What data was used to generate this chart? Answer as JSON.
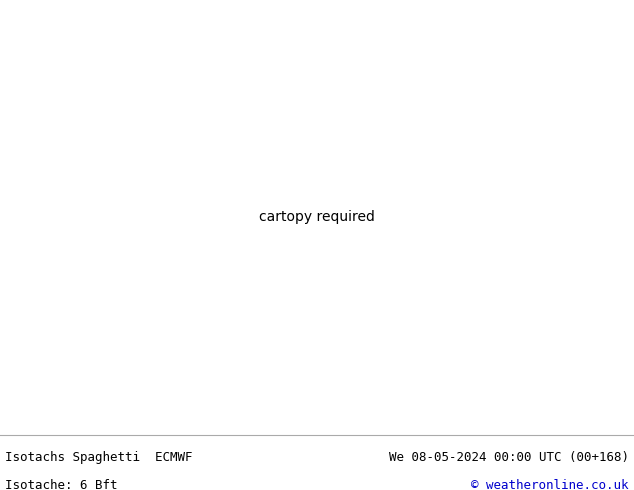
{
  "title_left1": "Isotachs Spaghetti  ECMWF",
  "title_left2": "Isotache: 6 Bft",
  "title_right1": "We 08-05-2024 00:00 UTC (00+168)",
  "title_right2": "© weatheronline.co.uk",
  "title_right2_color": "#0000cc",
  "bg_color": "#ffffff",
  "map_land_color": "#b8e8b0",
  "map_ocean_color": "#e8e8e8",
  "map_border_color": "#555555",
  "map_coast_color": "#555555",
  "map_state_color": "#777777",
  "text_color": "#000000",
  "figsize": [
    6.34,
    4.9
  ],
  "dpi": 100,
  "extent": [
    -175,
    -40,
    10,
    80
  ],
  "spaghetti_colors": [
    "#ff0000",
    "#cc0000",
    "#990000",
    "#00cc00",
    "#009900",
    "#0000ff",
    "#0000cc",
    "#000099",
    "#ff6600",
    "#cc5500",
    "#ff00ff",
    "#cc00cc",
    "#990099",
    "#00cccc",
    "#009999",
    "#ffff00",
    "#cccc00",
    "#ff0088",
    "#cc0066",
    "#8800ff",
    "#00ff88",
    "#00cc66",
    "#ff4400",
    "#ff8800",
    "#44ff00",
    "#0044ff",
    "#ff44aa",
    "#44ffff",
    "#884400",
    "#008844",
    "#440088",
    "#ffaa00",
    "#00aaff",
    "#aa00ff",
    "#ff00aa"
  ],
  "line_width": 0.7,
  "line_alpha": 0.85
}
